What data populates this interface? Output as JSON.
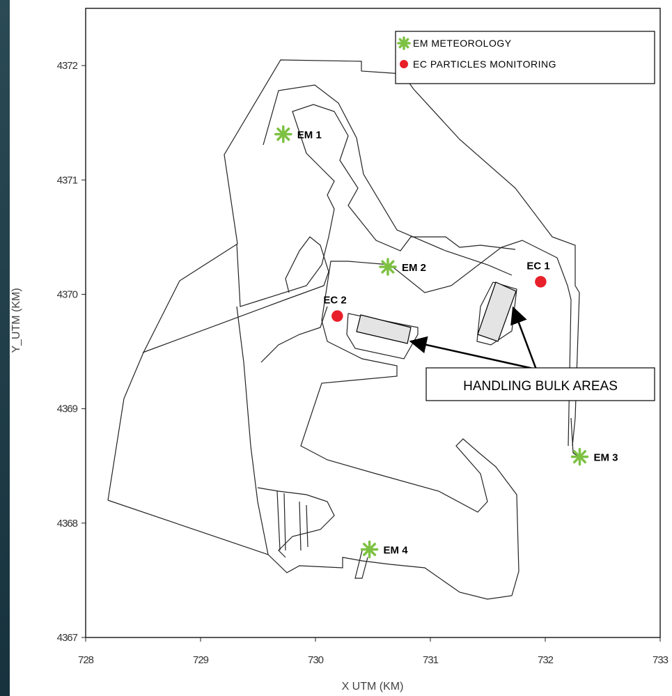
{
  "chart_data": {
    "type": "scatter",
    "xlabel": "X UTM (KM)",
    "ylabel": "Y_UTM (KM)",
    "xlim": [
      728,
      733
    ],
    "ylim": [
      4367,
      4372.5
    ],
    "xticks": [
      728,
      729,
      730,
      731,
      732,
      733
    ],
    "yticks": [
      4367,
      4368,
      4369,
      4370,
      4371,
      4372
    ],
    "legend": "upper right",
    "series": [
      {
        "name": "EM METEOROLOGY",
        "color": "#7dc142",
        "marker": "star",
        "x": [
          729.72,
          730.63,
          732.3,
          730.47
        ],
        "y": [
          4371.4,
          4370.24,
          4368.58,
          4367.77
        ],
        "labels": [
          "EM 1",
          "EM 2",
          "EM 3",
          "EM 4"
        ]
      },
      {
        "name": "EC PARTICLES MONITORING",
        "color": "#e8202a",
        "marker": "circle",
        "x": [
          731.96,
          730.19
        ],
        "y": [
          4370.11,
          4369.81
        ],
        "labels": [
          "EC 1",
          "EC 2"
        ]
      }
    ],
    "annotation": "HANDLING BULK AREAS"
  }
}
